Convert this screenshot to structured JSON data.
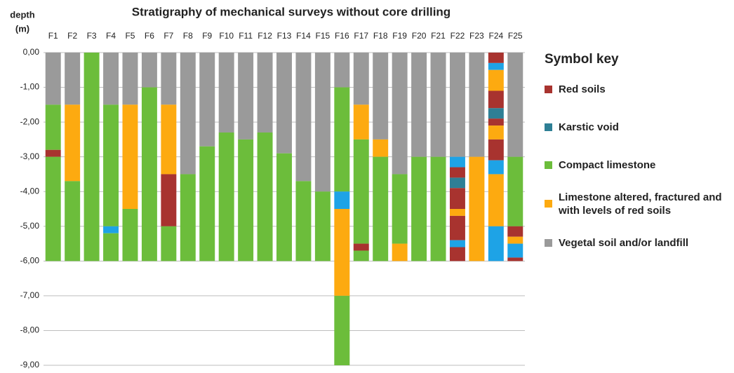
{
  "chart_data": {
    "type": "stratigraphy",
    "title": "Stratigraphy of mechanical surveys without core drilling",
    "y_label": [
      "depth",
      "(m)"
    ],
    "legend_title": "Symbol key",
    "series": [
      {
        "name": "Red soils",
        "color": "#a8332f"
      },
      {
        "name": "Karstic void",
        "color": "#2e7f95"
      },
      {
        "name": "Compact limestone",
        "color": "#6cbd3b"
      },
      {
        "name": "Limestone altered, fractured and with levels of red soils",
        "color": "#fdaa10"
      },
      {
        "name": "Vegetal soil and/or landfill",
        "color": "#9a9a9a"
      }
    ],
    "ylim": [
      -9,
      0
    ],
    "yticks": [
      {
        "value": 0,
        "label": "0,00"
      },
      {
        "value": -1,
        "label": "-1,00"
      },
      {
        "value": -2,
        "label": "-2,00"
      },
      {
        "value": -3,
        "label": "-3,00"
      },
      {
        "value": -4,
        "label": "-4,00"
      },
      {
        "value": -5,
        "label": "-5,00"
      },
      {
        "value": -6,
        "label": "-6,00"
      },
      {
        "value": -7,
        "label": "-7,00"
      },
      {
        "value": -8,
        "label": "-8,00"
      },
      {
        "value": -9,
        "label": "-9,00"
      }
    ],
    "grid": true,
    "surveys": [
      {
        "name": "F1",
        "layers": [
          {
            "type": 4,
            "value": -1.5
          },
          {
            "type": 2,
            "value": -1.3
          },
          {
            "type": 0,
            "value": -0.2
          },
          {
            "type": 2,
            "value": -3.0
          }
        ]
      },
      {
        "name": "F2",
        "layers": [
          {
            "type": 4,
            "value": -1.5
          },
          {
            "type": 3,
            "value": -2.2
          },
          {
            "type": 2,
            "value": -2.3
          }
        ]
      },
      {
        "name": "F3",
        "layers": [
          {
            "type": 2,
            "value": -6.0
          }
        ]
      },
      {
        "name": "F4",
        "layers": [
          {
            "type": 4,
            "value": -1.5
          },
          {
            "type": 2,
            "value": -3.5
          },
          {
            "type": 1,
            "value": -0.2,
            "color": "#1ea3e6"
          },
          {
            "type": 2,
            "value": -0.8
          }
        ]
      },
      {
        "name": "F5",
        "layers": [
          {
            "type": 4,
            "value": -1.5
          },
          {
            "type": 3,
            "value": -3.0
          },
          {
            "type": 2,
            "value": -1.5
          }
        ]
      },
      {
        "name": "F6",
        "layers": [
          {
            "type": 4,
            "value": -1.0
          },
          {
            "type": 2,
            "value": -5.0
          }
        ]
      },
      {
        "name": "F7",
        "layers": [
          {
            "type": 4,
            "value": -1.5
          },
          {
            "type": 3,
            "value": -2.0
          },
          {
            "type": 0,
            "value": -1.5
          },
          {
            "type": 2,
            "value": -1.0
          }
        ]
      },
      {
        "name": "F8",
        "layers": [
          {
            "type": 4,
            "value": -3.5
          },
          {
            "type": 2,
            "value": -2.5
          }
        ]
      },
      {
        "name": "F9",
        "layers": [
          {
            "type": 4,
            "value": -2.7
          },
          {
            "type": 2,
            "value": -3.3
          }
        ]
      },
      {
        "name": "F10",
        "layers": [
          {
            "type": 4,
            "value": -2.3
          },
          {
            "type": 2,
            "value": -3.7
          }
        ]
      },
      {
        "name": "F11",
        "layers": [
          {
            "type": 4,
            "value": -2.5
          },
          {
            "type": 2,
            "value": -3.5
          }
        ]
      },
      {
        "name": "F12",
        "layers": [
          {
            "type": 4,
            "value": -2.3
          },
          {
            "type": 2,
            "value": -3.7
          }
        ]
      },
      {
        "name": "F13",
        "layers": [
          {
            "type": 4,
            "value": -2.9
          },
          {
            "type": 2,
            "value": -3.1
          }
        ]
      },
      {
        "name": "F14",
        "layers": [
          {
            "type": 4,
            "value": -3.7
          },
          {
            "type": 2,
            "value": -2.3
          }
        ]
      },
      {
        "name": "F15",
        "layers": [
          {
            "type": 4,
            "value": -4.0
          },
          {
            "type": 2,
            "value": -2.0
          }
        ]
      },
      {
        "name": "F16",
        "layers": [
          {
            "type": 4,
            "value": -1.0
          },
          {
            "type": 2,
            "value": -3.0
          },
          {
            "type": 1,
            "value": -0.5,
            "color": "#1ea3e6"
          },
          {
            "type": 3,
            "value": -2.5
          },
          {
            "type": 2,
            "value": -2.0
          }
        ]
      },
      {
        "name": "F17",
        "layers": [
          {
            "type": 4,
            "value": -1.5
          },
          {
            "type": 3,
            "value": -1.0
          },
          {
            "type": 2,
            "value": -3.0
          },
          {
            "type": 0,
            "value": -0.2
          },
          {
            "type": 2,
            "value": -0.3
          }
        ]
      },
      {
        "name": "F18",
        "layers": [
          {
            "type": 4,
            "value": -2.5
          },
          {
            "type": 3,
            "value": -0.5
          },
          {
            "type": 2,
            "value": -3.0
          }
        ]
      },
      {
        "name": "F19",
        "layers": [
          {
            "type": 4,
            "value": -3.5
          },
          {
            "type": 2,
            "value": -2.0
          },
          {
            "type": 3,
            "value": -0.5
          }
        ]
      },
      {
        "name": "F20",
        "layers": [
          {
            "type": 4,
            "value": -3.0
          },
          {
            "type": 2,
            "value": -3.0
          }
        ]
      },
      {
        "name": "F21",
        "layers": [
          {
            "type": 4,
            "value": -3.0
          },
          {
            "type": 2,
            "value": -3.0
          }
        ]
      },
      {
        "name": "F22",
        "layers": [
          {
            "type": 4,
            "value": -3.0
          },
          {
            "type": 1,
            "value": -0.3,
            "color": "#1ea3e6"
          },
          {
            "type": 0,
            "value": -0.3
          },
          {
            "type": 1,
            "value": -0.3
          },
          {
            "type": 0,
            "value": -0.6
          },
          {
            "type": 3,
            "value": -0.2
          },
          {
            "type": 0,
            "value": -0.7
          },
          {
            "type": 1,
            "value": -0.2,
            "color": "#1ea3e6"
          },
          {
            "type": 0,
            "value": -0.4
          }
        ]
      },
      {
        "name": "F23",
        "layers": [
          {
            "type": 4,
            "value": -3.0
          },
          {
            "type": 3,
            "value": -3.0
          }
        ]
      },
      {
        "name": "F24",
        "layers": [
          {
            "type": 0,
            "value": -0.3
          },
          {
            "type": 1,
            "value": -0.2,
            "color": "#1ea3e6"
          },
          {
            "type": 3,
            "value": -0.6
          },
          {
            "type": 0,
            "value": -0.5
          },
          {
            "type": 1,
            "value": -0.3
          },
          {
            "type": 0,
            "value": -0.2
          },
          {
            "type": 3,
            "value": -0.4
          },
          {
            "type": 0,
            "value": -0.6
          },
          {
            "type": 1,
            "value": -0.4,
            "color": "#1ea3e6"
          },
          {
            "type": 3,
            "value": -1.5
          },
          {
            "type": 1,
            "value": -1.0,
            "color": "#1ea3e6"
          }
        ]
      },
      {
        "name": "F25",
        "layers": [
          {
            "type": 4,
            "value": -3.0
          },
          {
            "type": 2,
            "value": -2.0
          },
          {
            "type": 0,
            "value": -0.3
          },
          {
            "type": 3,
            "value": -0.2
          },
          {
            "type": 1,
            "value": -0.4,
            "color": "#1ea3e6"
          },
          {
            "type": 0,
            "value": -0.1
          }
        ]
      }
    ]
  }
}
